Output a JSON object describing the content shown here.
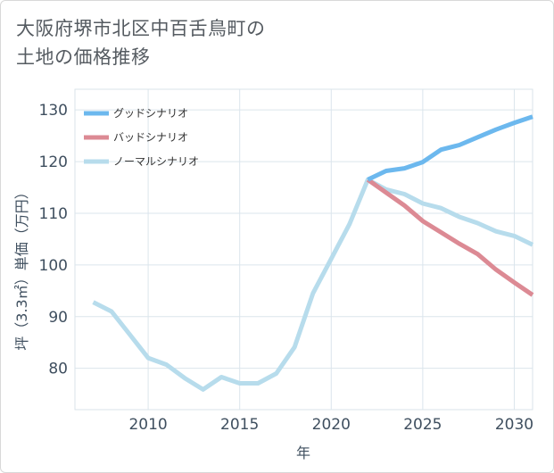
{
  "title": "大阪府堺市北区中百舌鳥町の\n土地の価格推移",
  "chart_data": {
    "type": "line",
    "xlabel": "年",
    "ylabel": "坪（3.3㎡）単価（万円）",
    "xlim": [
      2006,
      2031
    ],
    "ylim": [
      72,
      134
    ],
    "xticks": [
      2010,
      2015,
      2020,
      2025,
      2030
    ],
    "yticks": [
      80,
      90,
      100,
      110,
      120,
      130
    ],
    "grid": true,
    "legend_position": "top-left",
    "series": [
      {
        "name": "グッドシナリオ",
        "color": "#6cb8ee",
        "x": [
          2022,
          2023,
          2024,
          2025,
          2026,
          2027,
          2028,
          2029,
          2030,
          2031
        ],
        "values": [
          116.5,
          118.2,
          118.7,
          119.9,
          122.3,
          123.2,
          124.7,
          126.2,
          127.5,
          128.7
        ]
      },
      {
        "name": "バッドシナリオ",
        "color": "#dc8a94",
        "x": [
          2022,
          2023,
          2024,
          2025,
          2026,
          2027,
          2028,
          2029,
          2030,
          2031
        ],
        "values": [
          116.5,
          114.0,
          111.5,
          108.5,
          106.3,
          104.1,
          102.1,
          99.1,
          96.6,
          94.2
        ]
      },
      {
        "name": "ノーマルシナリオ",
        "color": "#b7dcec",
        "x": [
          2007,
          2008,
          2009,
          2010,
          2011,
          2012,
          2013,
          2014,
          2015,
          2016,
          2017,
          2018,
          2019,
          2020,
          2021,
          2022,
          2023,
          2024,
          2025,
          2026,
          2027,
          2028,
          2029,
          2030,
          2031
        ],
        "values": [
          92.8,
          91.0,
          86.5,
          82.0,
          80.7,
          78.1,
          75.9,
          78.3,
          77.1,
          77.1,
          79.0,
          84.1,
          94.5,
          101.2,
          107.9,
          116.5,
          114.6,
          113.7,
          111.9,
          111.0,
          109.3,
          108.1,
          106.5,
          105.6,
          103.9
        ]
      }
    ]
  }
}
